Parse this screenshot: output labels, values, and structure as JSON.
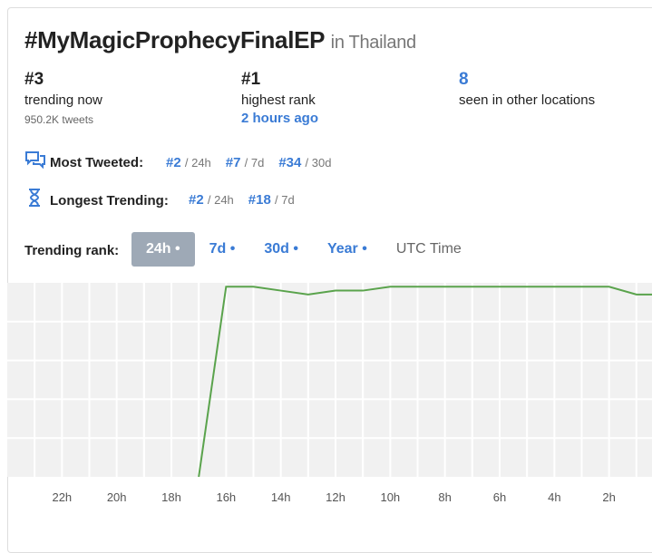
{
  "header": {
    "title": "#MyMagicProphecyFinalEP",
    "location": "in Thailand"
  },
  "stats": [
    {
      "value": "#3",
      "label": "trending now",
      "detail": "950.2K tweets"
    },
    {
      "value": "#1",
      "label": "highest rank",
      "detail": "2 hours ago"
    },
    {
      "value": "8",
      "label": "seen in other locations"
    }
  ],
  "most_tweeted": {
    "label": "Most Tweeted:",
    "items": [
      {
        "rank": "#2",
        "period": "/ 24h"
      },
      {
        "rank": "#7",
        "period": "/ 7d"
      },
      {
        "rank": "#34",
        "period": "/ 30d"
      }
    ]
  },
  "longest_trending": {
    "label": "Longest Trending:",
    "items": [
      {
        "rank": "#2",
        "period": "/ 24h"
      },
      {
        "rank": "#18",
        "period": "/ 7d"
      }
    ]
  },
  "trending_rank": {
    "label": "Trending rank:",
    "options": [
      "24h •",
      "7d •",
      "30d •",
      "Year •"
    ],
    "active": 0,
    "utc": "UTC Time"
  },
  "chart": {
    "type": "line",
    "color": "#5aa34c",
    "x": [
      17,
      16,
      15,
      14,
      13,
      12,
      11,
      10,
      9,
      8,
      7,
      6,
      5,
      4,
      3,
      2,
      1,
      0
    ],
    "values": [
      50,
      1,
      1,
      2,
      3,
      2,
      2,
      1,
      1,
      1,
      1,
      1,
      1,
      1,
      1,
      1,
      3,
      3
    ],
    "xlim": [
      24,
      0
    ],
    "ylim": [
      50,
      0
    ],
    "xticks": [
      {
        "value": 22,
        "label": "22h"
      },
      {
        "value": 20,
        "label": "20h"
      },
      {
        "value": 18,
        "label": "18h"
      },
      {
        "value": 16,
        "label": "16h"
      },
      {
        "value": 14,
        "label": "14h"
      },
      {
        "value": 12,
        "label": "12h"
      },
      {
        "value": 10,
        "label": "10h"
      },
      {
        "value": 8,
        "label": "8h"
      },
      {
        "value": 6,
        "label": "6h"
      },
      {
        "value": 4,
        "label": "4h"
      },
      {
        "value": 2,
        "label": "2h"
      }
    ],
    "yticks": [
      10,
      20,
      30,
      40
    ],
    "grid": true
  }
}
